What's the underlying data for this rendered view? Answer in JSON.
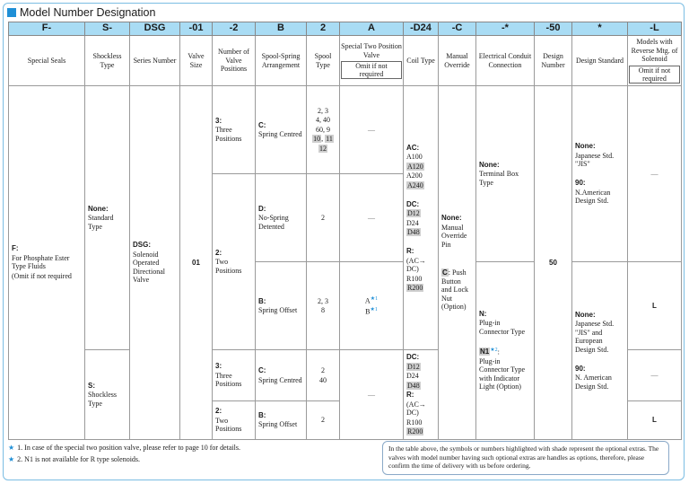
{
  "title": "Model Number Designation",
  "codes": [
    "F-",
    "S-",
    "DSG",
    "-01",
    "-2",
    "B",
    "2",
    "A",
    "-D24",
    "-C",
    "-*",
    "-50",
    "*",
    "-L"
  ],
  "headers": {
    "h0": "Special Seals",
    "h1": "Shockless Type",
    "h2": "Series Number",
    "h3": "Valve Size",
    "h4": "Number of Valve Positions",
    "h5": "Spool-Spring Arrangement",
    "h6": "Spool Type",
    "h7": "Special Two Position Valve",
    "h7_omit": "Omit if not required",
    "h8": "Coil Type",
    "h9": "Manual Override",
    "h10": "Electrical Conduit Connection",
    "h11": "Design Number",
    "h12": "Design Standard",
    "h13": "Models with Reverse Mtg. of Solenoid",
    "h13_omit": "Omit if not required"
  },
  "seals": {
    "code": "F:",
    "desc": "For Phosphate Ester Type Fluids",
    "omit": "(Omit if not required"
  },
  "shockless": {
    "none_code": "None:",
    "none_desc": "Standard Type",
    "s_code": "S:",
    "s_desc": "Shockless Type"
  },
  "series": {
    "code": "DSG:",
    "desc": "Solenoid Operated Directional Valve"
  },
  "valve_size": "01",
  "positions": {
    "three_code": "3:",
    "three_desc": "Three Positions",
    "two_code": "2:",
    "two_desc": "Two Positions",
    "three_code_b": "3:",
    "three_desc_b": "Three Positions",
    "two_code_b": "2:",
    "two_desc_b": "Two Positions"
  },
  "spring": {
    "c_code": "C:",
    "c_desc": "Spring Centred",
    "d_code": "D:",
    "d_desc": "No-Spring Detented",
    "b_code": "B:",
    "b_desc": "Spring Offset",
    "c2_code": "C:",
    "c2_desc": "Spring Centred",
    "b2_code": "B:",
    "b2_desc": "Spring Offset"
  },
  "spool": {
    "r1_l1": "2,  3",
    "r1_l2": "4, 40",
    "r1_l3": "60,  9",
    "r1_s1": "10",
    "r1_s2": "11",
    "r1_s3": "12",
    "r2": "2",
    "r3_l1": "2,  3",
    "r3_l2": "8",
    "r4_l1": "2",
    "r4_l2": "40",
    "r5": "2"
  },
  "special": {
    "dash": "—",
    "a": "A",
    "b": "B",
    "mark": "★1"
  },
  "coil": {
    "ac": "AC:",
    "a100": "A100",
    "a120": "A120",
    "a200": "A200",
    "a240": "A240",
    "dc": "DC:",
    "d12": "D12",
    "d24": "D24",
    "d48": "D48",
    "r": "R:",
    "r_paren": "(AC→ DC)",
    "r100": "R100",
    "r200": "R200",
    "dc2": "DC:",
    "d12b": "D12",
    "d24b": "D24",
    "d48b": "D48",
    "r2": "R:",
    "r2_paren": "(AC→ DC)",
    "r100b": "R100",
    "r200b": "R200"
  },
  "manual": {
    "none_code": "None:",
    "none_desc": "Manual Override Pin",
    "c_code": "C",
    "c_desc": ": Push Button and Lock Nut (Option)"
  },
  "electrical": {
    "none_code": "None:",
    "none_desc": "Terminal Box Type",
    "n_code": "N:",
    "n_desc": "Plug-in Connector Type",
    "n1_code": "N1",
    "n1_mark": "★2",
    "n1_colon": ":",
    "n1_desc": "Plug-in Connector Type with Indicator Light (Option)"
  },
  "design_number": "50",
  "standard": {
    "none_code": "None:",
    "none_desc": "Japanese Std. \"JIS\"",
    "n90_code": "90:",
    "n90_desc": "N.American Design Std.",
    "none2_code": "None:",
    "none2_desc": "Japanese Std. \"JIS\" and European Design Std.",
    "n90b_code": "90:",
    "n90b_desc": "N. American Design Std."
  },
  "reverse": {
    "l1": "L",
    "l2": "L"
  },
  "footnotes": [
    {
      "mark": "★",
      "text": "1.  In case of the special two position valve, please refer to page 10 for details."
    },
    {
      "mark": "★",
      "text": "2.  N1 is not available for R type solenoids."
    }
  ],
  "note_box": "In the table above, the symbols or numbers highlighted with shade represent the optional extras.  The valves with model number having such optional extras are handles as options, therefore, please confirm the time of delivery with us before ordering."
}
